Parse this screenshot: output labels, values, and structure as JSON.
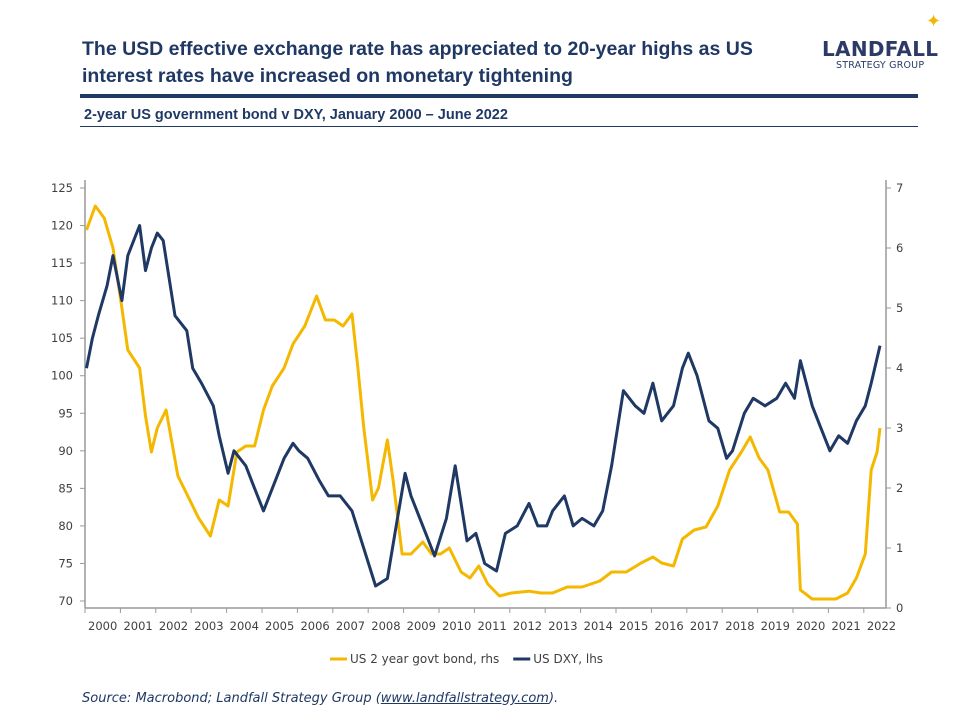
{
  "header": {
    "title": "The USD effective exchange rate has appreciated to 20-year highs as US interest rates have increased on monetary tightening",
    "logo_main": "LANDFALL",
    "logo_sub": "STRATEGY GROUP",
    "subtitle": "2-year US government bond v DXY, January 2000 – June 2022"
  },
  "footer": {
    "source_prefix": "Source: Macrobond; Landfall Strategy Group (",
    "source_link": "www.landfallstrategy.com",
    "source_suffix": ")."
  },
  "chart_data": {
    "type": "line",
    "title": "2-year US government bond v DXY, January 2000 – June 2022",
    "x_ticks": [
      "2000",
      "2001",
      "2002",
      "2003",
      "2004",
      "2005",
      "2006",
      "2007",
      "2008",
      "2009",
      "2010",
      "2011",
      "2012",
      "2013",
      "2014",
      "2015",
      "2016",
      "2017",
      "2018",
      "2019",
      "2020",
      "2021",
      "2022"
    ],
    "y_left": {
      "min": 70,
      "max": 125,
      "ticks": [
        70,
        75,
        80,
        85,
        90,
        95,
        100,
        105,
        110,
        115,
        120,
        125
      ]
    },
    "y_right": {
      "min": 0,
      "max": 7,
      "ticks": [
        0,
        1,
        2,
        3,
        4,
        5,
        6,
        7
      ]
    },
    "grid": false,
    "legend_position": "bottom",
    "colors": {
      "bond": "#f5b800",
      "dxy": "#1f3864"
    },
    "series": [
      {
        "name": "US 2 year govt bond, rhs",
        "axis": "right",
        "color": "#f5b800",
        "points": [
          [
            "2000-01",
            6.3
          ],
          [
            "2000-04",
            6.7
          ],
          [
            "2000-07",
            6.5
          ],
          [
            "2000-10",
            6.0
          ],
          [
            "2001-01",
            5.0
          ],
          [
            "2001-03",
            4.3
          ],
          [
            "2001-07",
            4.0
          ],
          [
            "2001-09",
            3.2
          ],
          [
            "2001-11",
            2.6
          ],
          [
            "2002-01",
            3.0
          ],
          [
            "2002-04",
            3.3
          ],
          [
            "2002-08",
            2.2
          ],
          [
            "2002-11",
            1.9
          ],
          [
            "2003-03",
            1.5
          ],
          [
            "2003-07",
            1.2
          ],
          [
            "2003-10",
            1.8
          ],
          [
            "2004-01",
            1.7
          ],
          [
            "2004-04",
            2.6
          ],
          [
            "2004-07",
            2.7
          ],
          [
            "2004-10",
            2.7
          ],
          [
            "2005-01",
            3.3
          ],
          [
            "2005-04",
            3.7
          ],
          [
            "2005-08",
            4.0
          ],
          [
            "2005-11",
            4.4
          ],
          [
            "2006-03",
            4.7
          ],
          [
            "2006-07",
            5.2
          ],
          [
            "2006-10",
            4.8
          ],
          [
            "2007-01",
            4.8
          ],
          [
            "2007-04",
            4.7
          ],
          [
            "2007-07",
            4.9
          ],
          [
            "2007-09",
            4.0
          ],
          [
            "2007-11",
            3.0
          ],
          [
            "2008-02",
            1.8
          ],
          [
            "2008-04",
            2.0
          ],
          [
            "2008-07",
            2.8
          ],
          [
            "2008-09",
            2.1
          ],
          [
            "2008-12",
            0.9
          ],
          [
            "2009-03",
            0.9
          ],
          [
            "2009-07",
            1.1
          ],
          [
            "2009-10",
            0.9
          ],
          [
            "2010-01",
            0.9
          ],
          [
            "2010-04",
            1.0
          ],
          [
            "2010-08",
            0.6
          ],
          [
            "2010-11",
            0.5
          ],
          [
            "2011-02",
            0.7
          ],
          [
            "2011-05",
            0.4
          ],
          [
            "2011-09",
            0.2
          ],
          [
            "2012-01",
            0.25
          ],
          [
            "2012-07",
            0.28
          ],
          [
            "2012-11",
            0.25
          ],
          [
            "2013-03",
            0.25
          ],
          [
            "2013-08",
            0.35
          ],
          [
            "2014-01",
            0.35
          ],
          [
            "2014-07",
            0.45
          ],
          [
            "2014-11",
            0.6
          ],
          [
            "2015-04",
            0.6
          ],
          [
            "2015-09",
            0.75
          ],
          [
            "2016-01",
            0.85
          ],
          [
            "2016-04",
            0.75
          ],
          [
            "2016-08",
            0.7
          ],
          [
            "2016-11",
            1.15
          ],
          [
            "2017-03",
            1.3
          ],
          [
            "2017-07",
            1.35
          ],
          [
            "2017-11",
            1.7
          ],
          [
            "2018-03",
            2.3
          ],
          [
            "2018-07",
            2.6
          ],
          [
            "2018-10",
            2.85
          ],
          [
            "2019-01",
            2.5
          ],
          [
            "2019-04",
            2.3
          ],
          [
            "2019-08",
            1.6
          ],
          [
            "2019-11",
            1.6
          ],
          [
            "2020-02",
            1.4
          ],
          [
            "2020-03",
            0.3
          ],
          [
            "2020-07",
            0.15
          ],
          [
            "2020-11",
            0.15
          ],
          [
            "2021-03",
            0.15
          ],
          [
            "2021-07",
            0.25
          ],
          [
            "2021-10",
            0.5
          ],
          [
            "2022-01",
            0.9
          ],
          [
            "2022-03",
            2.3
          ],
          [
            "2022-05",
            2.6
          ],
          [
            "2022-06",
            3.0
          ]
        ]
      },
      {
        "name": "US DXY, lhs",
        "axis": "left",
        "color": "#1f3864",
        "points": [
          [
            "2000-01",
            101
          ],
          [
            "2000-03",
            105
          ],
          [
            "2000-05",
            108
          ],
          [
            "2000-08",
            112
          ],
          [
            "2000-10",
            116
          ],
          [
            "2001-01",
            110
          ],
          [
            "2001-03",
            116
          ],
          [
            "2001-07",
            120
          ],
          [
            "2001-09",
            114
          ],
          [
            "2001-11",
            117
          ],
          [
            "2002-01",
            119
          ],
          [
            "2002-03",
            118
          ],
          [
            "2002-07",
            108
          ],
          [
            "2002-09",
            107
          ],
          [
            "2002-11",
            106
          ],
          [
            "2003-01",
            101
          ],
          [
            "2003-04",
            99
          ],
          [
            "2003-08",
            96
          ],
          [
            "2003-10",
            92
          ],
          [
            "2004-01",
            87
          ],
          [
            "2004-03",
            90
          ],
          [
            "2004-07",
            88
          ],
          [
            "2004-10",
            85
          ],
          [
            "2005-01",
            82
          ],
          [
            "2005-04",
            85
          ],
          [
            "2005-08",
            89
          ],
          [
            "2005-11",
            91
          ],
          [
            "2006-01",
            90
          ],
          [
            "2006-04",
            89
          ],
          [
            "2006-08",
            86
          ],
          [
            "2006-11",
            84
          ],
          [
            "2007-03",
            84
          ],
          [
            "2007-07",
            82
          ],
          [
            "2007-11",
            77
          ],
          [
            "2008-03",
            72
          ],
          [
            "2008-07",
            73
          ],
          [
            "2008-10",
            80
          ],
          [
            "2009-01",
            87
          ],
          [
            "2009-03",
            84
          ],
          [
            "2009-07",
            80
          ],
          [
            "2009-11",
            76
          ],
          [
            "2010-03",
            81
          ],
          [
            "2010-06",
            88
          ],
          [
            "2010-08",
            83
          ],
          [
            "2010-10",
            78
          ],
          [
            "2011-01",
            79
          ],
          [
            "2011-04",
            75
          ],
          [
            "2011-08",
            74
          ],
          [
            "2011-11",
            79
          ],
          [
            "2012-03",
            80
          ],
          [
            "2012-07",
            83
          ],
          [
            "2012-10",
            80
          ],
          [
            "2013-01",
            80
          ],
          [
            "2013-03",
            82
          ],
          [
            "2013-07",
            84
          ],
          [
            "2013-10",
            80
          ],
          [
            "2014-01",
            81
          ],
          [
            "2014-05",
            80
          ],
          [
            "2014-08",
            82
          ],
          [
            "2014-11",
            88
          ],
          [
            "2015-03",
            98
          ],
          [
            "2015-07",
            96
          ],
          [
            "2015-10",
            95
          ],
          [
            "2016-01",
            99
          ],
          [
            "2016-04",
            94
          ],
          [
            "2016-08",
            96
          ],
          [
            "2016-11",
            101
          ],
          [
            "2017-01",
            103
          ],
          [
            "2017-04",
            100
          ],
          [
            "2017-08",
            94
          ],
          [
            "2017-11",
            93
          ],
          [
            "2018-02",
            89
          ],
          [
            "2018-04",
            90
          ],
          [
            "2018-08",
            95
          ],
          [
            "2018-11",
            97
          ],
          [
            "2019-03",
            96
          ],
          [
            "2019-07",
            97
          ],
          [
            "2019-10",
            99
          ],
          [
            "2020-01",
            97
          ],
          [
            "2020-03",
            102
          ],
          [
            "2020-07",
            96
          ],
          [
            "2020-10",
            93
          ],
          [
            "2021-01",
            90
          ],
          [
            "2021-04",
            92
          ],
          [
            "2021-07",
            91
          ],
          [
            "2021-10",
            94
          ],
          [
            "2022-01",
            96
          ],
          [
            "2022-03",
            99
          ],
          [
            "2022-06",
            104
          ]
        ]
      }
    ]
  }
}
